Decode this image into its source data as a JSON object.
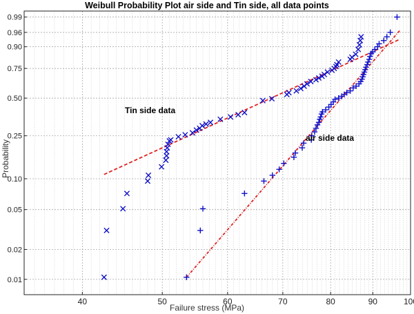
{
  "chart_data": {
    "type": "scatter",
    "title": "Weibull Probability Plot air side and Tin side, all data points",
    "xlabel": "Failure stress (MPa)",
    "ylabel": "Probability",
    "xscale": "log",
    "yscale": "weibull",
    "xlim": [
      34,
      100
    ],
    "ylim": [
      0.007,
      0.995
    ],
    "grid": true,
    "xticks": [
      40,
      50,
      60,
      70,
      80,
      90,
      100
    ],
    "xtick_labels": [
      "40",
      "50",
      "60",
      "70",
      "80",
      "90",
      "100"
    ],
    "yticks": [
      0.01,
      0.02,
      0.05,
      0.1,
      0.25,
      0.5,
      0.75,
      0.9,
      0.96,
      0.99
    ],
    "ytick_labels": [
      "0.01",
      "0.02",
      "0.05",
      "0.10",
      "0.25",
      "0.50",
      "0.75",
      "0.90",
      "0.96",
      "0.99"
    ],
    "marker_color": "#1010c8",
    "fit_color": "#e02020",
    "annotations": [
      {
        "text": "Tin side data"
      },
      {
        "text": "air side data"
      }
    ],
    "series": [
      {
        "marker": "x",
        "points": [
          [
            42.5,
            0.0105
          ],
          [
            42.8,
            0.031
          ],
          [
            44.8,
            0.051
          ],
          [
            45.3,
            0.072
          ],
          [
            48.0,
            0.095
          ],
          [
            48.1,
            0.108
          ],
          [
            49.9,
            0.13
          ],
          [
            50.5,
            0.15
          ],
          [
            50.6,
            0.165
          ],
          [
            50.6,
            0.18
          ],
          [
            50.7,
            0.195
          ],
          [
            50.8,
            0.21
          ],
          [
            51.0,
            0.225
          ],
          [
            51.2,
            0.23
          ],
          [
            52.3,
            0.245
          ],
          [
            53.3,
            0.255
          ],
          [
            54.4,
            0.265
          ],
          [
            55.0,
            0.28
          ],
          [
            55.5,
            0.29
          ],
          [
            55.9,
            0.305
          ],
          [
            56.5,
            0.315
          ],
          [
            57.2,
            0.325
          ],
          [
            58.8,
            0.345
          ],
          [
            60.5,
            0.36
          ],
          [
            61.8,
            0.375
          ],
          [
            62.9,
            0.39
          ],
          [
            66.2,
            0.48
          ],
          [
            67.9,
            0.495
          ],
          [
            70.8,
            0.53
          ],
          [
            71.2,
            0.545
          ],
          [
            72.7,
            0.56
          ],
          [
            73.6,
            0.58
          ],
          [
            74.3,
            0.6
          ],
          [
            74.9,
            0.62
          ],
          [
            75.7,
            0.64
          ],
          [
            76.8,
            0.655
          ],
          [
            77.4,
            0.67
          ],
          [
            78.1,
            0.685
          ],
          [
            78.6,
            0.7
          ],
          [
            79.3,
            0.72
          ],
          [
            80.3,
            0.735
          ],
          [
            80.8,
            0.75
          ],
          [
            81.2,
            0.765
          ],
          [
            81.4,
            0.78
          ],
          [
            81.8,
            0.8
          ],
          [
            84.5,
            0.82
          ],
          [
            84.9,
            0.835
          ],
          [
            85.8,
            0.855
          ],
          [
            86.4,
            0.885
          ],
          [
            86.7,
            0.91
          ],
          [
            86.9,
            0.93
          ],
          [
            87.1,
            0.945
          ]
        ]
      },
      {
        "marker": "+",
        "points": [
          [
            53.5,
            0.0105
          ],
          [
            55.6,
            0.031
          ],
          [
            56.0,
            0.051
          ],
          [
            62.9,
            0.072
          ],
          [
            66.4,
            0.095
          ],
          [
            68.0,
            0.108
          ],
          [
            69.3,
            0.123
          ],
          [
            70.2,
            0.14
          ],
          [
            72.2,
            0.16
          ],
          [
            72.5,
            0.175
          ],
          [
            73.9,
            0.195
          ],
          [
            74.2,
            0.215
          ],
          [
            75.8,
            0.23
          ],
          [
            75.9,
            0.25
          ],
          [
            76.5,
            0.27
          ],
          [
            76.8,
            0.29
          ],
          [
            77.1,
            0.31
          ],
          [
            77.4,
            0.325
          ],
          [
            77.6,
            0.345
          ],
          [
            77.8,
            0.36
          ],
          [
            78.0,
            0.38
          ],
          [
            78.2,
            0.395
          ],
          [
            78.9,
            0.41
          ],
          [
            79.6,
            0.43
          ],
          [
            80.1,
            0.45
          ],
          [
            80.6,
            0.47
          ],
          [
            81.0,
            0.49
          ],
          [
            81.8,
            0.5
          ],
          [
            82.5,
            0.515
          ],
          [
            83.1,
            0.53
          ],
          [
            83.7,
            0.545
          ],
          [
            84.5,
            0.56
          ],
          [
            85.2,
            0.585
          ],
          [
            85.9,
            0.6
          ],
          [
            86.6,
            0.62
          ],
          [
            87.0,
            0.64
          ],
          [
            87.3,
            0.66
          ],
          [
            87.5,
            0.68
          ],
          [
            87.7,
            0.7
          ],
          [
            87.9,
            0.72
          ],
          [
            88.1,
            0.74
          ],
          [
            88.3,
            0.76
          ],
          [
            88.6,
            0.78
          ],
          [
            88.8,
            0.8
          ],
          [
            89.1,
            0.82
          ],
          [
            89.3,
            0.84
          ],
          [
            89.6,
            0.86
          ],
          [
            90.0,
            0.87
          ],
          [
            90.5,
            0.885
          ],
          [
            91.2,
            0.9
          ],
          [
            91.6,
            0.915
          ],
          [
            92.8,
            0.93
          ],
          [
            93.6,
            0.945
          ],
          [
            94.5,
            0.96
          ],
          [
            96.3,
            0.99
          ]
        ]
      }
    ],
    "fits": [
      {
        "style": "dashed",
        "points": [
          [
            42.5,
            0.11
          ],
          [
            97.0,
            0.935
          ]
        ]
      },
      {
        "style": "dash-dot",
        "points": [
          [
            53.5,
            0.0105
          ],
          [
            97.0,
            0.965
          ]
        ]
      }
    ]
  }
}
